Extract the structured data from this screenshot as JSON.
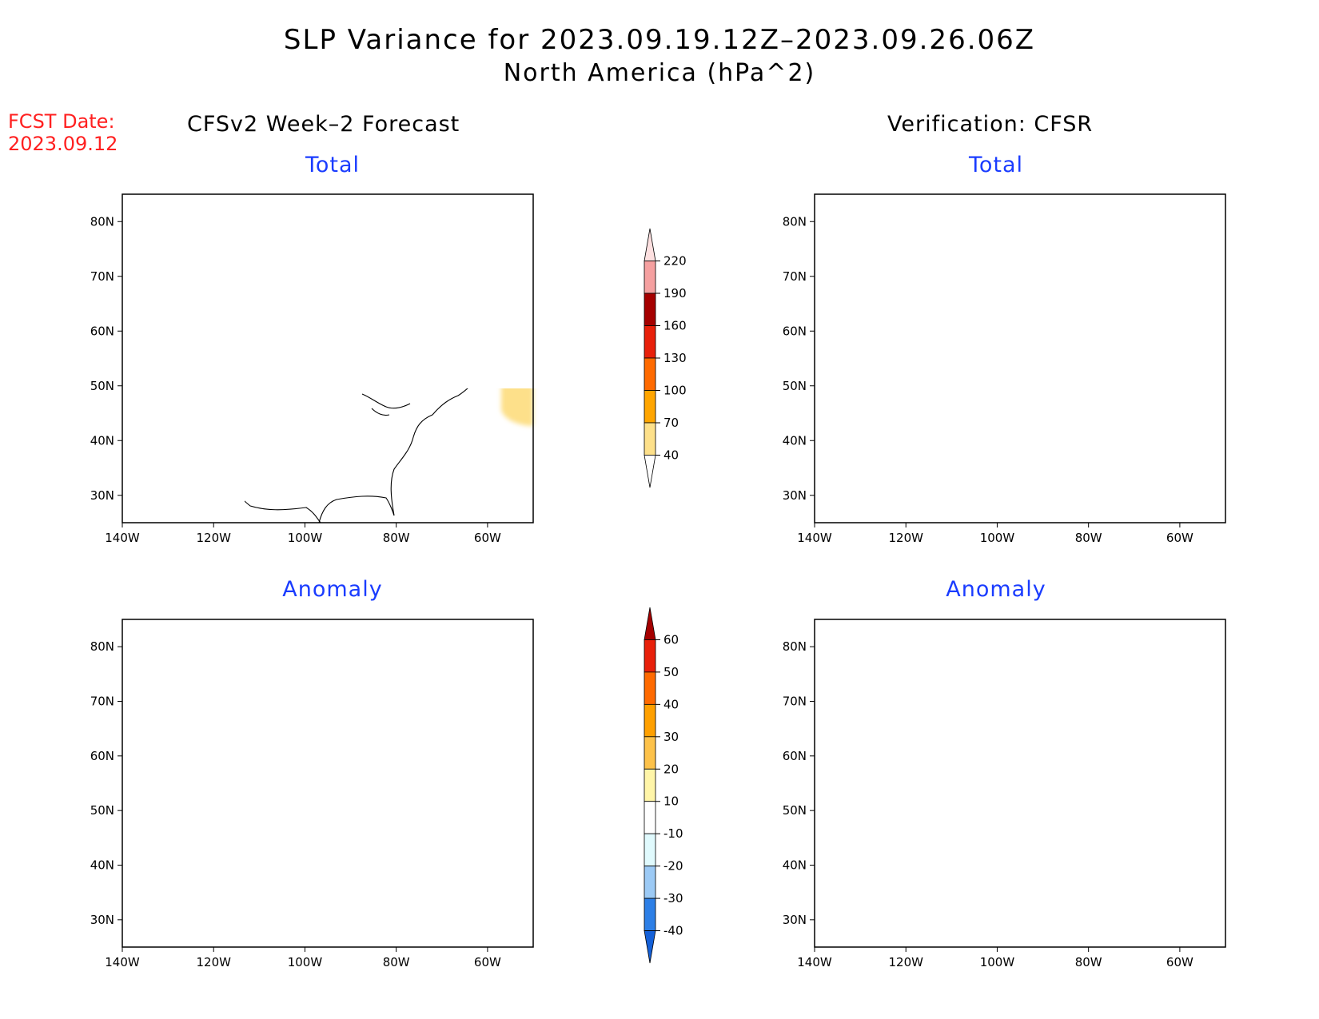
{
  "title": "SLP Variance for 2023.09.19.12Z–2023.09.26.06Z",
  "subtitle": "North America (hPa^2)",
  "fcst_label": "FCST Date:",
  "fcst_date": "2023.09.12",
  "left_column_title": "CFSv2 Week–2 Forecast",
  "right_column_title": "Verification: CFSR",
  "panel_titles": {
    "top_left": "Total",
    "top_right": "Total",
    "bottom_left": "Anomaly",
    "bottom_right": "Anomaly"
  },
  "chart_data": {
    "type": "heatmap",
    "axes": {
      "lon_ticks": [
        "140W",
        "120W",
        "100W",
        "80W",
        "60W"
      ],
      "lat_ticks": [
        "80N",
        "70N",
        "60N",
        "50N",
        "40N",
        "30N"
      ],
      "lon_range_deg": [
        -140,
        -50
      ],
      "lat_range_deg": [
        25,
        85
      ]
    },
    "total_colorbar": {
      "levels": [
        40,
        70,
        100,
        130,
        160,
        190,
        220
      ],
      "colors": [
        "#ffffff",
        "#fde08a",
        "#ffa500",
        "#ff6a00",
        "#e8200a",
        "#a50000",
        "#f5a0a0",
        "#fde0e0"
      ]
    },
    "anomaly_colorbar": {
      "levels": [
        -40,
        -30,
        -20,
        -10,
        10,
        20,
        30,
        40,
        50,
        60
      ],
      "colors": [
        "#1460d8",
        "#2d7fe6",
        "#9ccaf5",
        "#e0fafd",
        "#ffffff",
        "#fff5a8",
        "#fdc24a",
        "#ffa000",
        "#ff6a00",
        "#e8200a",
        "#a50000"
      ]
    }
  },
  "colors": {
    "fcst": "#ff2020",
    "panel_title": "#1a3cff"
  }
}
